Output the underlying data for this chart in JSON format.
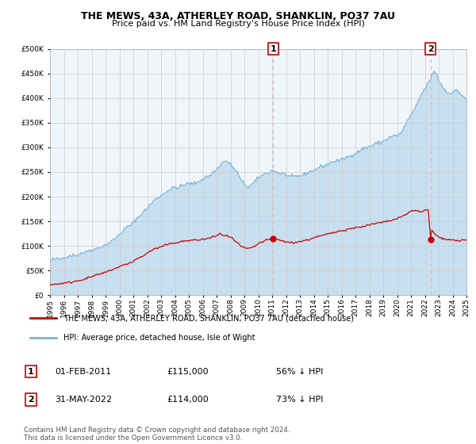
{
  "title": "THE MEWS, 43A, ATHERLEY ROAD, SHANKLIN, PO37 7AU",
  "subtitle": "Price paid vs. HM Land Registry's House Price Index (HPI)",
  "legend_line1": "THE MEWS, 43A, ATHERLEY ROAD, SHANKLIN, PO37 7AU (detached house)",
  "legend_line2": "HPI: Average price, detached house, Isle of Wight",
  "footnote": "Contains HM Land Registry data © Crown copyright and database right 2024.\nThis data is licensed under the Open Government Licence v3.0.",
  "sale1_date": "01-FEB-2011",
  "sale1_price": "£115,000",
  "sale1_hpi": "56% ↓ HPI",
  "sale2_date": "31-MAY-2022",
  "sale2_price": "£114,000",
  "sale2_hpi": "73% ↓ HPI",
  "hpi_color": "#7ab3d4",
  "hpi_fill": "#c8dff0",
  "price_color": "#cc0000",
  "dashed_color": "#ffaaaa",
  "ylim": [
    0,
    500000
  ],
  "yticks": [
    0,
    50000,
    100000,
    150000,
    200000,
    250000,
    300000,
    350000,
    400000,
    450000,
    500000
  ],
  "sale1_x": 2011.083,
  "sale1_y": 115000,
  "sale2_x": 2022.416,
  "sale2_y": 114000,
  "xmin": 1995,
  "xmax": 2025
}
